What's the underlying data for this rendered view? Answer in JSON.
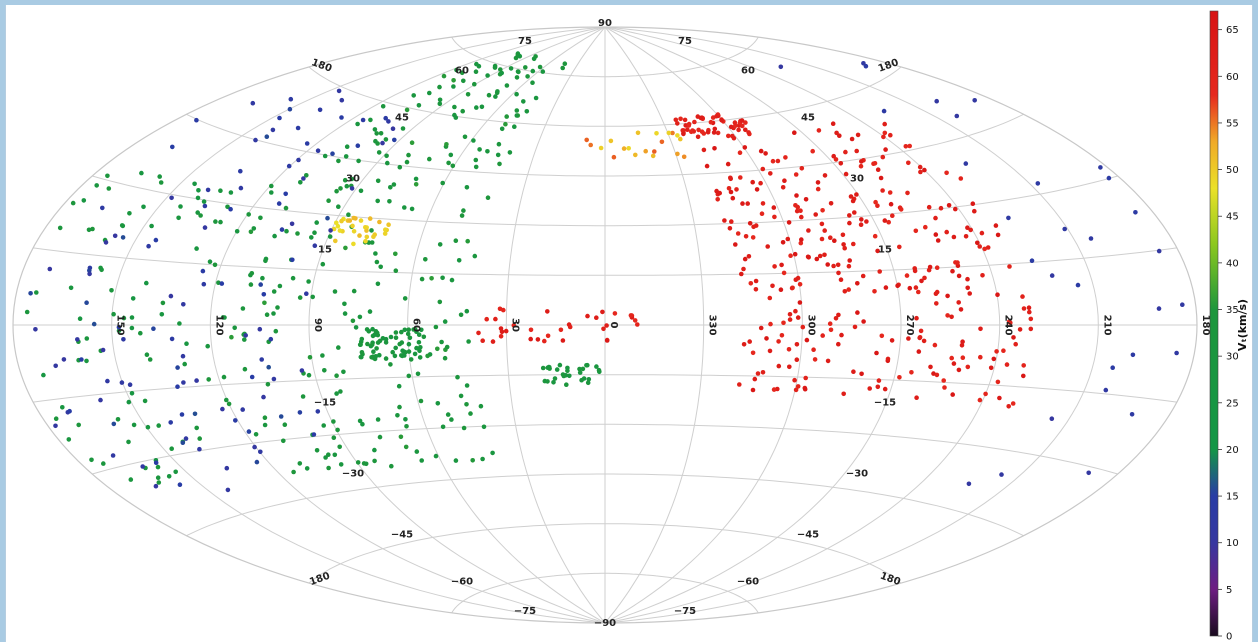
{
  "chart_data": {
    "type": "scatter",
    "projection": "aitoff (equal-area all-sky)",
    "grid": true,
    "colormap": "jet",
    "colorbar": {
      "label": "Vₜ(km/s)",
      "ticks": [
        0,
        5,
        10,
        15,
        20,
        25,
        30,
        35,
        40,
        45,
        50,
        55,
        60,
        65
      ],
      "range": [
        0,
        67
      ],
      "placement": "right"
    },
    "latitude_labels": [
      {
        "text": "90",
        "lat": 90
      },
      {
        "text": "75",
        "lat": 75
      },
      {
        "text": "75",
        "lat": 75
      },
      {
        "text": "60",
        "lat": 60
      },
      {
        "text": "60",
        "lat": 60
      },
      {
        "text": "45",
        "lat": 45
      },
      {
        "text": "45",
        "lat": 45
      },
      {
        "text": "30",
        "lat": 30
      },
      {
        "text": "30",
        "lat": 30
      },
      {
        "text": "15",
        "lat": 15
      },
      {
        "text": "15",
        "lat": 15
      },
      {
        "text": "−15",
        "lat": -15
      },
      {
        "text": "−15",
        "lat": -15
      },
      {
        "text": "−30",
        "lat": -30
      },
      {
        "text": "−30",
        "lat": -30
      },
      {
        "text": "−45",
        "lat": -45
      },
      {
        "text": "−45",
        "lat": -45
      },
      {
        "text": "−60",
        "lat": -60
      },
      {
        "text": "−60",
        "lat": -60
      },
      {
        "text": "−75",
        "lat": -75
      },
      {
        "text": "−75",
        "lat": -75
      },
      {
        "text": "−90",
        "lat": -90
      }
    ],
    "longitude_labels": [
      "150",
      "120",
      "90",
      "60",
      "30",
      "0",
      "330",
      "300",
      "270",
      "240",
      "210",
      "180"
    ],
    "edge_labels": [
      "180",
      "180",
      "180",
      "180"
    ],
    "point_groups": [
      {
        "lon_range": [
          -130,
          -40
        ],
        "lat_range": [
          -20,
          55
        ],
        "v_range": [
          58,
          66
        ],
        "count": 340
      },
      {
        "lon_range": [
          -70,
          -35
        ],
        "lat_range": [
          55,
          62
        ],
        "v_range": [
          58,
          64
        ],
        "count": 55
      },
      {
        "lon_range": [
          -10,
          40
        ],
        "lat_range": [
          -5,
          5
        ],
        "v_range": [
          58,
          65
        ],
        "count": 35
      },
      {
        "lon_range": [
          -40,
          10
        ],
        "lat_range": [
          50,
          58
        ],
        "v_range": [
          48,
          56
        ],
        "count": 20
      },
      {
        "lon_range": [
          40,
          120
        ],
        "lat_range": [
          -40,
          80
        ],
        "v_range": [
          28,
          36
        ],
        "count": 300
      },
      {
        "lon_range": [
          55,
          75
        ],
        "lat_range": [
          -10,
          -1
        ],
        "v_range": [
          28,
          34
        ],
        "count": 60
      },
      {
        "lon_range": [
          0,
          20
        ],
        "lat_range": [
          -18,
          -12
        ],
        "v_range": [
          28,
          34
        ],
        "count": 30
      },
      {
        "lon_range": [
          70,
          90
        ],
        "lat_range": [
          22,
          30
        ],
        "v_range": [
          48,
          52
        ],
        "count": 30
      },
      {
        "lon_range": [
          120,
          178
        ],
        "lat_range": [
          -35,
          35
        ],
        "v_range": [
          26,
          35
        ],
        "count": 90
      },
      {
        "lon_range": [
          90,
          178
        ],
        "lat_range": [
          -40,
          60
        ],
        "v_range": [
          10,
          16
        ],
        "count": 120
      },
      {
        "lon_range": [
          -178,
          -130
        ],
        "lat_range": [
          -45,
          70
        ],
        "v_range": [
          10,
          14
        ],
        "count": 30
      }
    ]
  }
}
